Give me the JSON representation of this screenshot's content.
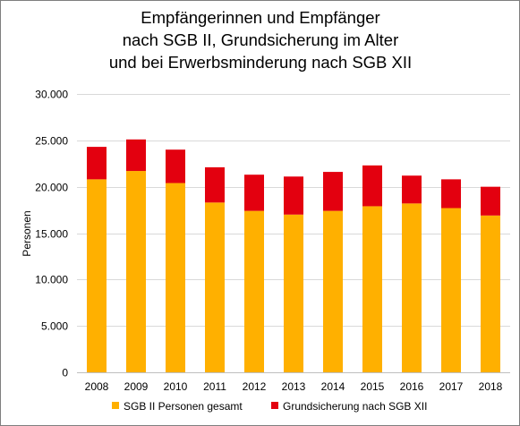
{
  "chart_data": {
    "type": "bar",
    "stacked": true,
    "title": [
      "Empfängerinnen und Empfänger",
      "nach SGB II, Grundsicherung im Alter",
      "und bei Erwerbsminderung nach SGB XII"
    ],
    "ylabel": "Personen",
    "xlabel": "",
    "ylim": [
      0,
      30000
    ],
    "yticks": [
      "0",
      "5.000",
      "10.000",
      "15.000",
      "20.000",
      "25.000",
      "30.000"
    ],
    "ytick_values": [
      0,
      5000,
      10000,
      15000,
      20000,
      25000,
      30000
    ],
    "grid": true,
    "legend_position": "bottom",
    "categories": [
      "2008",
      "2009",
      "2010",
      "2011",
      "2012",
      "2013",
      "2014",
      "2015",
      "2016",
      "2017",
      "2018"
    ],
    "series": [
      {
        "name": "SGB II Personen gesamt",
        "color": "#FFB000",
        "values": [
          20800,
          21700,
          20400,
          18300,
          17400,
          17000,
          17400,
          17900,
          18200,
          17700,
          16900
        ]
      },
      {
        "name": "Grundsicherung nach SGB XII",
        "color": "#E3000F",
        "values": [
          3500,
          3400,
          3600,
          3800,
          3900,
          4100,
          4200,
          4400,
          3000,
          3100,
          3100
        ]
      }
    ]
  }
}
